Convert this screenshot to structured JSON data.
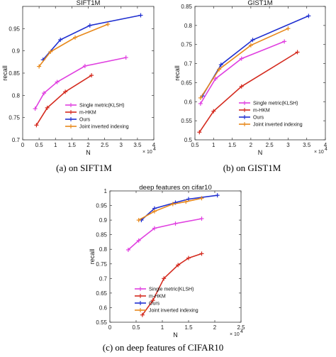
{
  "chart_data": [
    {
      "type": "line",
      "title": "SIFT1M",
      "xlabel": "N",
      "ylabel": "recall",
      "x_multiplier": "× 10",
      "x_multiplier_exp": "4",
      "xlim": [
        0,
        4
      ],
      "ylim": [
        0.7,
        1.0
      ],
      "xticks": [
        "0",
        "0.5",
        "1",
        "1.5",
        "2",
        "2.5",
        "3",
        "3.5",
        "4"
      ],
      "yticks": [
        "0.7",
        "0.75",
        "0.8",
        "0.85",
        "0.9",
        "0.95"
      ],
      "ytick_values": [
        0.7,
        0.75,
        0.8,
        0.85,
        0.9,
        0.95
      ],
      "grid": false,
      "legend_position": "right-center",
      "caption": "(a) on SIFT1M",
      "series": [
        {
          "name": "Single metric(KLSH)",
          "color": "#e040e0",
          "marker": "plus",
          "x": [
            0.38,
            0.65,
            1.05,
            1.9,
            3.15
          ],
          "y": [
            0.77,
            0.805,
            0.83,
            0.866,
            0.885
          ]
        },
        {
          "name": "m-HKM",
          "color": "#d42a1e",
          "marker": "plus",
          "x": [
            0.42,
            0.75,
            1.3,
            2.1
          ],
          "y": [
            0.733,
            0.772,
            0.808,
            0.845
          ]
        },
        {
          "name": "Ours",
          "color": "#1f2fd0",
          "marker": "plus",
          "x": [
            0.62,
            1.15,
            2.05,
            3.6
          ],
          "y": [
            0.88,
            0.925,
            0.957,
            0.98
          ]
        },
        {
          "name": "Joint inverted indexing",
          "color": "#e8891c",
          "marker": "plus",
          "x": [
            0.5,
            0.85,
            1.6,
            2.6
          ],
          "y": [
            0.865,
            0.898,
            0.93,
            0.96
          ]
        }
      ]
    },
    {
      "type": "line",
      "title": "GIST1M",
      "xlabel": "N",
      "ylabel": "recall",
      "x_multiplier": "× 10",
      "x_multiplier_exp": "4",
      "xlim": [
        0.5,
        4
      ],
      "ylim": [
        0.5,
        0.85
      ],
      "xticks": [
        "0.5",
        "1",
        "1.5",
        "2",
        "2.5",
        "3",
        "3.5",
        "4"
      ],
      "yticks": [
        "0.5",
        "0.55",
        "0.6",
        "0.65",
        "0.7",
        "0.75",
        "0.8",
        "0.85"
      ],
      "ytick_values": [
        0.5,
        0.55,
        0.6,
        0.65,
        0.7,
        0.75,
        0.8,
        0.85
      ],
      "grid": false,
      "legend_position": "bottom-right",
      "caption": "(b) on GIST1M",
      "series": [
        {
          "name": "Single metric(KLSH)",
          "color": "#e040e0",
          "marker": "plus",
          "x": [
            0.65,
            1.05,
            1.75,
            2.9
          ],
          "y": [
            0.595,
            0.66,
            0.713,
            0.758
          ]
        },
        {
          "name": "m-HKM",
          "color": "#d42a1e",
          "marker": "plus",
          "x": [
            0.62,
            1.0,
            1.75,
            3.25
          ],
          "y": [
            0.52,
            0.575,
            0.64,
            0.73
          ]
        },
        {
          "name": "Ours",
          "color": "#1f2fd0",
          "marker": "plus",
          "x": [
            0.7,
            1.2,
            2.05,
            3.55
          ],
          "y": [
            0.615,
            0.697,
            0.762,
            0.825
          ]
        },
        {
          "name": "Joint inverted indexing",
          "color": "#e8891c",
          "marker": "plus",
          "x": [
            0.65,
            1.15,
            2.0,
            3.0
          ],
          "y": [
            0.61,
            0.685,
            0.748,
            0.792
          ]
        }
      ]
    },
    {
      "type": "line",
      "title": "deep features on cifar10",
      "xlabel": "N",
      "ylabel": "recall",
      "x_multiplier": "× 10",
      "x_multiplier_exp": "4",
      "xlim": [
        0,
        2.5
      ],
      "ylim": [
        0.55,
        1.0
      ],
      "xticks": [
        "0",
        "0.5",
        "1",
        "1.5",
        "2",
        "2.5"
      ],
      "yticks": [
        "0.55",
        "0.6",
        "0.65",
        "0.7",
        "0.75",
        "0.8",
        "0.85",
        "0.9",
        "0.95",
        "1"
      ],
      "ytick_values": [
        0.55,
        0.6,
        0.65,
        0.7,
        0.75,
        0.8,
        0.85,
        0.9,
        0.95,
        1.0
      ],
      "grid": false,
      "legend_position": "bottom-right",
      "caption": "(c) on deep features of CIFAR10",
      "series": [
        {
          "name": "Single metric(KLSH)",
          "color": "#e040e0",
          "marker": "plus",
          "x": [
            0.35,
            0.55,
            0.85,
            1.25,
            1.75
          ],
          "y": [
            0.798,
            0.83,
            0.872,
            0.888,
            0.905
          ]
        },
        {
          "name": "m-HKM",
          "color": "#d42a1e",
          "marker": "plus",
          "x": [
            0.62,
            0.82,
            1.03,
            1.3,
            1.5,
            1.75
          ],
          "y": [
            0.575,
            0.625,
            0.7,
            0.746,
            0.77,
            0.785
          ]
        },
        {
          "name": "Ours",
          "color": "#1f2fd0",
          "marker": "plus",
          "x": [
            0.6,
            0.85,
            1.25,
            1.5,
            2.05
          ],
          "y": [
            0.9,
            0.94,
            0.96,
            0.972,
            0.985
          ]
        },
        {
          "name": "Joint inverted indexing",
          "color": "#e8891c",
          "marker": "plus",
          "x": [
            0.55,
            0.85,
            1.2,
            1.45,
            1.75
          ],
          "y": [
            0.9,
            0.93,
            0.955,
            0.963,
            0.975
          ]
        }
      ]
    }
  ]
}
